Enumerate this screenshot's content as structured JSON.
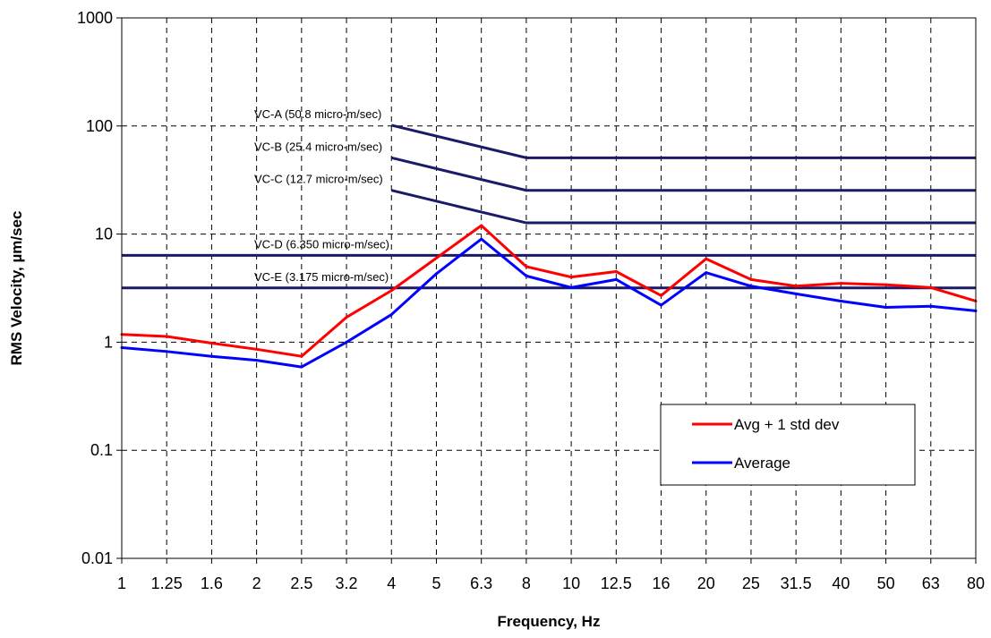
{
  "chart_data": {
    "type": "line",
    "xlabel": "Frequency, Hz",
    "ylabel": "RMS Velocity, µm/sec",
    "x_scale": "categorical",
    "y_scale": "log",
    "ylim": [
      0.01,
      1000
    ],
    "y_ticks": [
      "0.01",
      "0.1",
      "1",
      "10",
      "100",
      "1000"
    ],
    "categories": [
      "1",
      "1.25",
      "1.6",
      "2",
      "2.5",
      "3.2",
      "4",
      "5",
      "6.3",
      "8",
      "10",
      "12.5",
      "16",
      "20",
      "25",
      "31.5",
      "40",
      "50",
      "63",
      "80"
    ],
    "grid": true,
    "legend_position": "lower-right",
    "series": [
      {
        "name": "Avg + 1 std dev",
        "color": "#ff0000",
        "values": [
          1.18,
          1.13,
          0.98,
          0.86,
          0.74,
          1.7,
          3.0,
          6.0,
          12.0,
          5.0,
          4.0,
          4.5,
          2.7,
          5.9,
          3.8,
          3.3,
          3.5,
          3.4,
          3.2,
          2.4
        ]
      },
      {
        "name": "Average",
        "color": "#0000ff",
        "values": [
          0.89,
          0.82,
          0.74,
          0.68,
          0.59,
          1.0,
          1.8,
          4.3,
          9.0,
          4.1,
          3.2,
          3.8,
          2.2,
          4.4,
          3.3,
          2.8,
          2.4,
          2.1,
          2.15,
          1.95
        ]
      }
    ],
    "criteria_curves": [
      {
        "label": "VC-A (50.8 micro-m/sec)",
        "color": "#1a1a66",
        "start_category": "4",
        "start_value": 101.6,
        "plateau_from": "8",
        "value": 50.8
      },
      {
        "label": "VC-B (25.4 micro-m/sec)",
        "color": "#1a1a66",
        "start_category": "4",
        "start_value": 50.8,
        "plateau_from": "8",
        "value": 25.4
      },
      {
        "label": "VC-C (12.7 micro-m/sec)",
        "color": "#1a1a66",
        "start_category": "4",
        "start_value": 25.4,
        "plateau_from": "8",
        "value": 12.7
      },
      {
        "label": "VC-D (6.350 micro-m/sec)",
        "color": "#1a1a66",
        "start_category": "1",
        "start_value": 6.35,
        "plateau_from": "1",
        "value": 6.35
      },
      {
        "label": "VC-E (3.175 micro-m/sec)",
        "color": "#1a1a66",
        "start_category": "1",
        "start_value": 3.175,
        "plateau_from": "1",
        "value": 3.175
      }
    ]
  }
}
